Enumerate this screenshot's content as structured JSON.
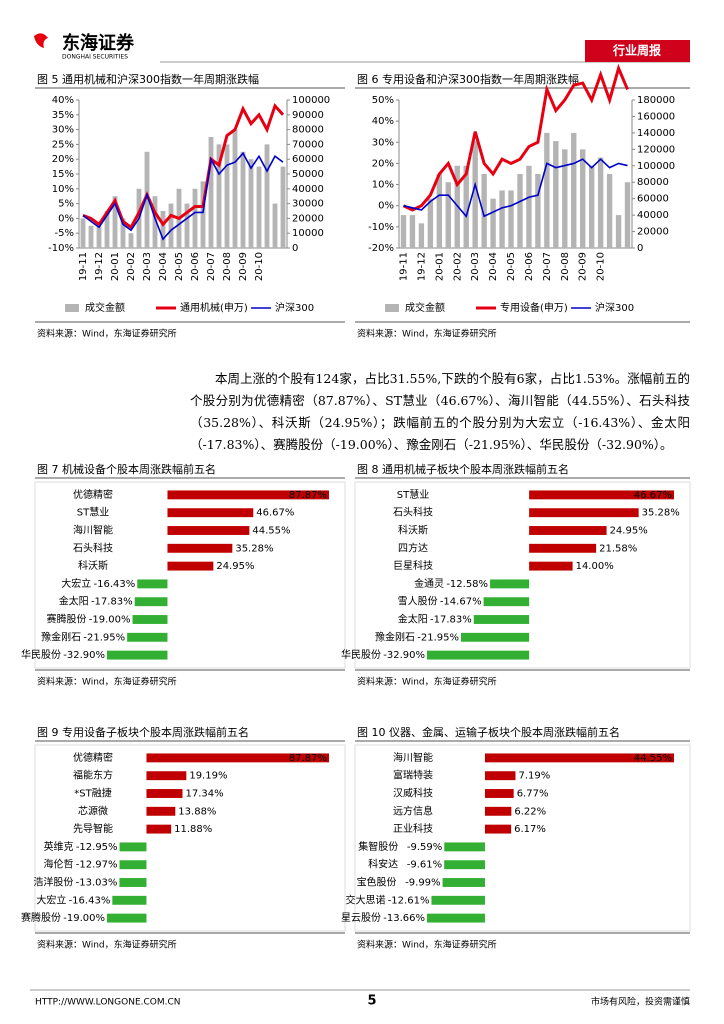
{
  "header": {
    "logo": "东海证券",
    "logo_en": "DONGHAI SECURITIES",
    "tag": "行业周报"
  },
  "paragraph": "本周上涨的个股有124家，占比31.55%,下跌的个股有6家，占比1.53%。涨幅前五的个股分别为优德精密（87.87%）、ST慧业（46.67%）、海川智能（44.55%）、石头科技（35.28%）、科沃斯（24.95%）；跌幅前五的个股分别为大宏立（-16.43%）、金太阳（-17.83%）、赛腾股份（-19.00%）、豫金刚石（-21.95%）、华民股份（-32.90%）。",
  "footer": {
    "url": "HTTP://WWW.LONGONE.COM.CN",
    "page": "5",
    "note": "市场有风险，投资需谨慎"
  },
  "chart_data": [
    {
      "type": "combo",
      "title": "图 5   通用机械和沪深300指数一年周期涨跌幅",
      "source": "资料来源：Wind，东海证券研究所",
      "categories": [
        "19-11",
        null,
        "19-12",
        null,
        "20-01",
        null,
        "20-02",
        null,
        "20-03",
        null,
        "20-04",
        null,
        "20-05",
        null,
        "20-06",
        null,
        "20-07",
        null,
        "20-08",
        null,
        "20-09",
        null,
        "20-10",
        null,
        null,
        null
      ],
      "series": [
        {
          "name": "成交金额",
          "type": "bar",
          "axis": "y2",
          "color": "#b4b4b4",
          "values": [
            20000,
            15000,
            15000,
            25000,
            35000,
            20000,
            10000,
            40000,
            65000,
            35000,
            25000,
            30000,
            40000,
            30000,
            40000,
            45000,
            75000,
            70000,
            70000,
            80000,
            65000,
            60000,
            55000,
            70000,
            30000,
            55000
          ]
        },
        {
          "name": "通用机械(申万)",
          "type": "line",
          "color": "#e60012",
          "values": [
            1,
            0,
            -2,
            2,
            6,
            -1,
            -3,
            2,
            8,
            2,
            -2,
            1,
            0,
            2,
            4,
            4,
            20,
            18,
            28,
            30,
            37,
            32,
            35,
            30,
            38,
            35
          ]
        },
        {
          "name": "沪深300",
          "type": "line",
          "color": "#0000cc",
          "values": [
            1,
            -1,
            -3,
            1,
            5,
            -2,
            -4,
            0,
            8,
            0,
            -7,
            -4,
            -2,
            0,
            2,
            2,
            20,
            15,
            18,
            19,
            22,
            17,
            21,
            16,
            21,
            19
          ]
        }
      ],
      "ylim": [
        -10,
        40
      ],
      "yticks": [
        {
          "value": -10,
          "label": "-10%"
        },
        {
          "value": -5,
          "label": "-5%"
        },
        {
          "value": 0,
          "label": "0%"
        },
        {
          "value": 5,
          "label": "5%"
        },
        {
          "value": 10,
          "label": "10%"
        },
        {
          "value": 15,
          "label": "15%"
        },
        {
          "value": 20,
          "label": "20%"
        },
        {
          "value": 25,
          "label": "25%"
        },
        {
          "value": 30,
          "label": "30%"
        },
        {
          "value": 35,
          "label": "35%"
        },
        {
          "value": 40,
          "label": "40%"
        }
      ],
      "y2lim": [
        0,
        100000
      ],
      "y2ticks": [
        0,
        10000,
        20000,
        30000,
        40000,
        50000,
        60000,
        70000,
        80000,
        90000,
        100000
      ]
    },
    {
      "type": "combo",
      "title": "图 6   专用设备和沪深300指数一年周期涨跌幅",
      "source": "资料来源：Wind，东海证券研究所",
      "categories": [
        "19-11",
        null,
        "19-12",
        null,
        "20-01",
        null,
        "20-02",
        null,
        "20-03",
        null,
        "20-04",
        null,
        "20-05",
        null,
        "20-06",
        null,
        "20-07",
        null,
        "20-08",
        null,
        "20-09",
        null,
        "20-10",
        null,
        null,
        null
      ],
      "series": [
        {
          "name": "成交金额",
          "type": "bar",
          "axis": "y2",
          "color": "#b4b4b4",
          "values": [
            40000,
            40000,
            30000,
            60000,
            90000,
            80000,
            100000,
            100000,
            130000,
            90000,
            60000,
            70000,
            70000,
            90000,
            100000,
            90000,
            140000,
            130000,
            120000,
            140000,
            120000,
            100000,
            110000,
            90000,
            40000,
            80000
          ]
        },
        {
          "name": "专用设备(申万)",
          "type": "line",
          "color": "#e60012",
          "values": [
            0,
            -2,
            0,
            5,
            15,
            20,
            10,
            15,
            35,
            20,
            15,
            22,
            20,
            22,
            28,
            30,
            55,
            45,
            50,
            57,
            58,
            50,
            62,
            50,
            65,
            55
          ]
        },
        {
          "name": "沪深300",
          "type": "line",
          "color": "#0000cc",
          "values": [
            0,
            -1,
            -2,
            2,
            5,
            5,
            0,
            -5,
            10,
            -5,
            -3,
            -1,
            0,
            2,
            4,
            5,
            20,
            18,
            19,
            20,
            22,
            18,
            22,
            18,
            20,
            19
          ]
        }
      ],
      "ylim": [
        -20,
        50
      ],
      "yticks": [
        {
          "value": -20,
          "label": "-20%"
        },
        {
          "value": -10,
          "label": "-10%"
        },
        {
          "value": 0,
          "label": "0%"
        },
        {
          "value": 10,
          "label": "10%"
        },
        {
          "value": 20,
          "label": "20%"
        },
        {
          "value": 30,
          "label": "30%"
        },
        {
          "value": 40,
          "label": "40%"
        },
        {
          "value": 50,
          "label": "50%"
        }
      ],
      "y2lim": [
        0,
        180000
      ],
      "y2ticks": [
        0,
        20000,
        40000,
        60000,
        80000,
        100000,
        120000,
        140000,
        160000,
        180000
      ]
    },
    {
      "type": "hbar",
      "title": "图 7   机械设备个股本周涨跌幅前五名",
      "source": "资料来源：Wind，东海证券研究所",
      "positive_color": "#c00000",
      "negative_color": "#33b033",
      "categories": [
        "优德精密",
        "ST慧业",
        "海川智能",
        "石头科技",
        "科沃斯",
        "大宏立",
        "金太阳",
        "赛腾股份",
        "豫金刚石",
        "华民股份"
      ],
      "values": [
        87.87,
        46.67,
        44.55,
        35.28,
        24.95,
        -16.43,
        -17.83,
        -19.0,
        -21.95,
        -32.9
      ],
      "value_labels": [
        "87.87%",
        "46.67%",
        "44.55%",
        "35.28%",
        "24.95%",
        "-16.43%",
        "-17.83%",
        "-19.00%",
        "-21.95%",
        "-32.90%"
      ]
    },
    {
      "type": "hbar",
      "title": "图 8   通用机械子板块个股本周涨跌幅前五名",
      "source": "资料来源：Wind，东海证券研究所",
      "positive_color": "#c00000",
      "negative_color": "#33b033",
      "categories": [
        "ST慧业",
        "石头科技",
        "科沃斯",
        "四方达",
        "巨星科技",
        "金通灵",
        "雪人股份",
        "金太阳",
        "豫金刚石",
        "华民股份"
      ],
      "values": [
        46.67,
        35.28,
        24.95,
        21.58,
        14.0,
        -12.58,
        -14.67,
        -17.83,
        -21.95,
        -32.9
      ],
      "value_labels": [
        "46.67%",
        "35.28%",
        "24.95%",
        "21.58%",
        "14.00%",
        "-12.58%",
        "-14.67%",
        "-17.83%",
        "-21.95%",
        "-32.90%"
      ]
    },
    {
      "type": "hbar",
      "title": "图 9   专用设备子板块个股本周涨跌幅前五名",
      "source": "资料来源：Wind，东海证券研究所",
      "positive_color": "#c00000",
      "negative_color": "#33b033",
      "categories": [
        "优德精密",
        "福能东方",
        "*ST融捷",
        "芯源微",
        "先导智能",
        "英维克",
        "海伦哲",
        "浩洋股份",
        "大宏立",
        "赛腾股份"
      ],
      "values": [
        87.87,
        19.19,
        17.34,
        13.88,
        11.88,
        -12.95,
        -12.97,
        -13.03,
        -16.43,
        -19.0
      ],
      "value_labels": [
        "87.87%",
        "19.19%",
        "17.34%",
        "13.88%",
        "11.88%",
        "-12.95%",
        "-12.97%",
        "-13.03%",
        "-16.43%",
        "-19.00%"
      ]
    },
    {
      "type": "hbar",
      "title": "图 10  仪器、金属、运输子板块个股本周涨跌幅前五名",
      "source": "资料来源：Wind，东海证券研究所",
      "positive_color": "#c00000",
      "negative_color": "#33b033",
      "categories": [
        "海川智能",
        "富瑞特装",
        "汉威科技",
        "远方信息",
        "正业科技",
        "集智股份",
        "科安达",
        "宝色股份",
        "交大思诺",
        "星云股份"
      ],
      "values": [
        44.55,
        7.19,
        6.77,
        6.22,
        6.17,
        -9.59,
        -9.61,
        -9.99,
        -12.61,
        -13.66
      ],
      "value_labels": [
        "44.55%",
        "7.19%",
        "6.77%",
        "6.22%",
        "6.17%",
        "-9.59%",
        "-9.61%",
        "-9.99%",
        "-12.61%",
        "-13.66%"
      ]
    }
  ]
}
